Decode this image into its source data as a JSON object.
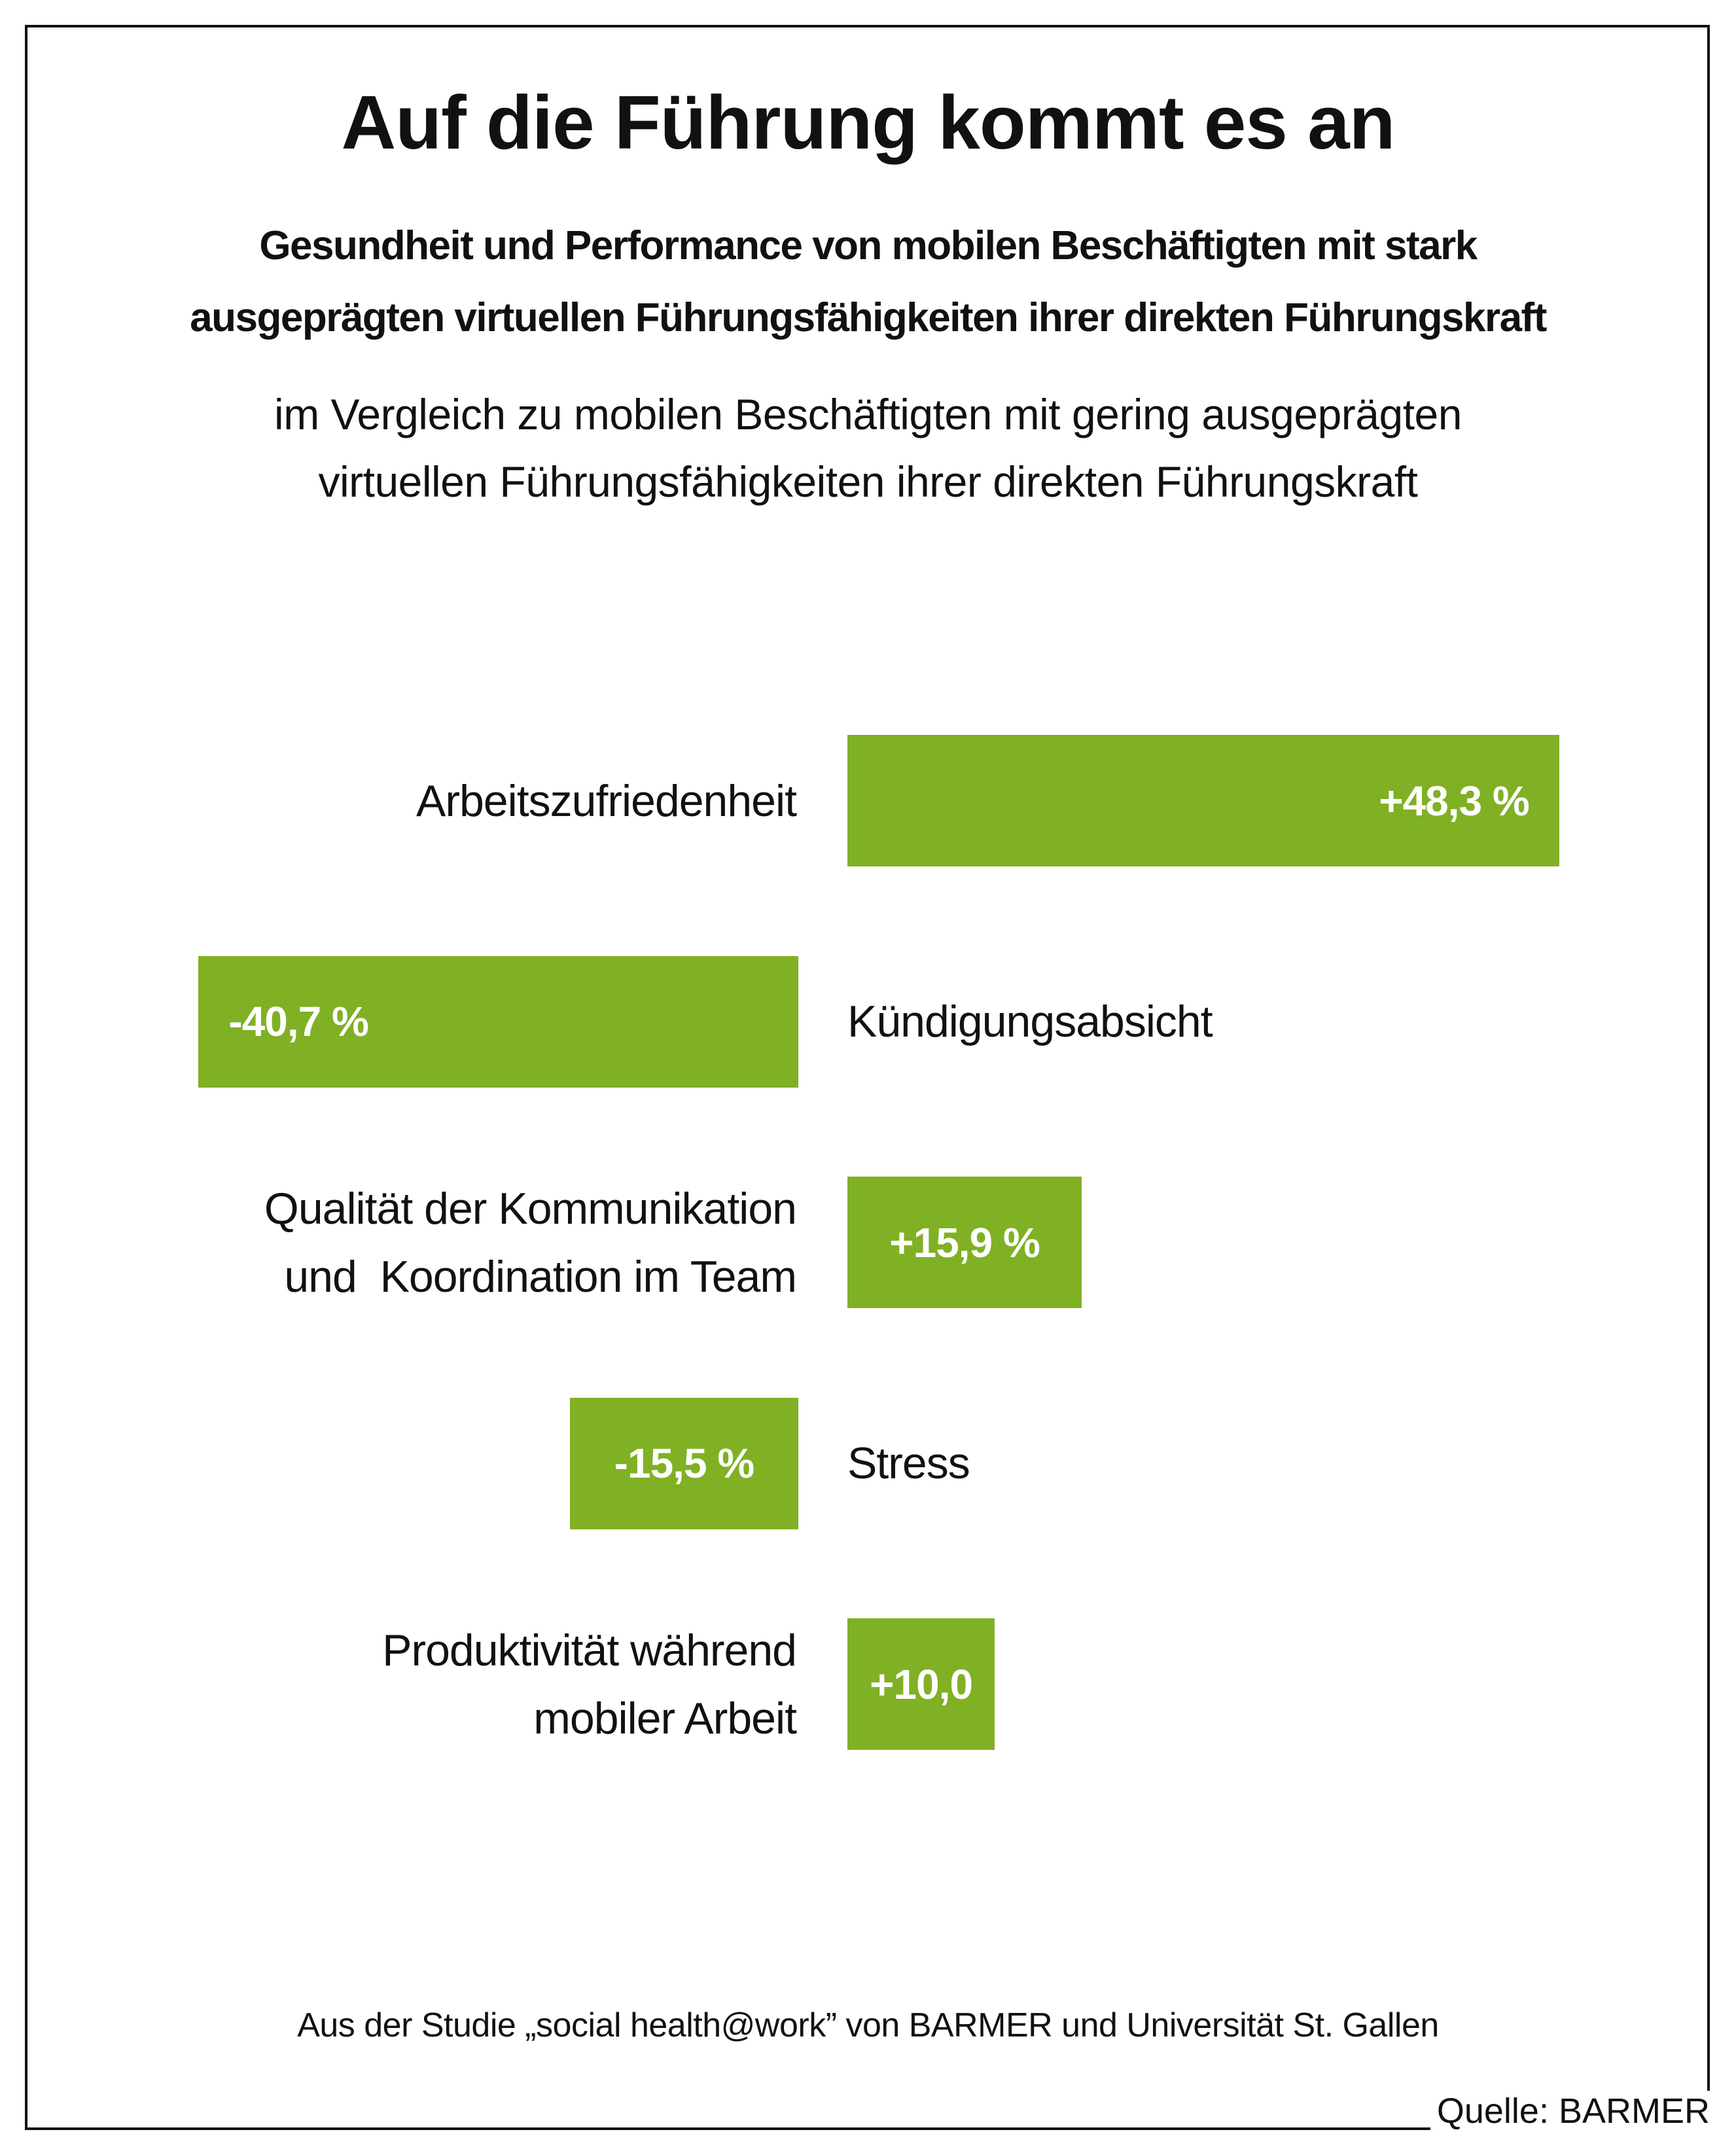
{
  "title": "Auf die Führung kommt es an",
  "subtitle": {
    "line1": "Gesundheit und Performance von mobilen Beschäftigten mit stark",
    "line2": "ausgeprägten virtuellen Führungsfähigkeiten ihrer direkten Führungskraft"
  },
  "comparison": {
    "line1": "im Vergleich zu mobilen Beschäftigten mit gering ausgeprägten",
    "line2": "virtuellen Führungsfähigkeiten ihrer direkten Führungskraft"
  },
  "chart_data": {
    "type": "bar",
    "orientation": "horizontal-diverging",
    "unit": "%",
    "categories": [
      [
        "Arbeitszufriedenheit"
      ],
      [
        "Kündigungsabsicht"
      ],
      [
        "Qualität der Kommunikation",
        "und  Koordination im Team"
      ],
      [
        "Stress"
      ],
      [
        "Produktivität während",
        "mobiler Arbeit"
      ]
    ],
    "values": [
      48.3,
      -40.7,
      15.9,
      -15.5,
      10.0
    ],
    "value_labels": [
      "+48,3 %",
      "-40,7 %",
      "+15,9 %",
      "-15,5 %",
      "+10,0"
    ],
    "color": "#80b024"
  },
  "footnote": "Aus der Studie „social health@work” von BARMER und Universität St. Gallen",
  "source": "Quelle: BARMER"
}
